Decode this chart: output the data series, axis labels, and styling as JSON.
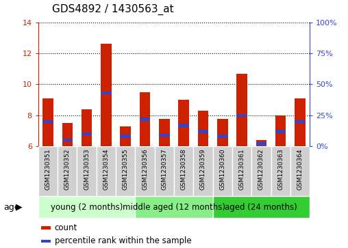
{
  "title": "GDS4892 / 1430563_at",
  "samples": [
    "GSM1230351",
    "GSM1230352",
    "GSM1230353",
    "GSM1230354",
    "GSM1230355",
    "GSM1230356",
    "GSM1230357",
    "GSM1230358",
    "GSM1230359",
    "GSM1230360",
    "GSM1230361",
    "GSM1230362",
    "GSM1230363",
    "GSM1230364"
  ],
  "count_values": [
    9.1,
    7.5,
    8.4,
    12.6,
    7.3,
    9.5,
    7.75,
    9.0,
    8.3,
    7.75,
    10.7,
    6.4,
    8.0,
    9.1
  ],
  "percentile_values": [
    20,
    5,
    10,
    43,
    8,
    22,
    9,
    17,
    12,
    8,
    25,
    2,
    12,
    20
  ],
  "ylim_left": [
    6,
    14
  ],
  "ylim_right": [
    0,
    100
  ],
  "yticks_left": [
    6,
    8,
    10,
    12,
    14
  ],
  "yticks_right": [
    0,
    25,
    50,
    75,
    100
  ],
  "ytick_labels_right": [
    "0%",
    "25%",
    "50%",
    "75%",
    "100%"
  ],
  "bar_color": "#cc2200",
  "percentile_color": "#3344cc",
  "bar_width": 0.55,
  "groups": [
    {
      "label": "young (2 months)",
      "start": 0,
      "end": 4,
      "color": "#ccffcc"
    },
    {
      "label": "middle aged (12 months)",
      "start": 5,
      "end": 8,
      "color": "#88ee88"
    },
    {
      "label": "aged (24 months)",
      "start": 9,
      "end": 13,
      "color": "#33cc33"
    }
  ],
  "age_label": "age",
  "legend_count_label": "count",
  "legend_percentile_label": "percentile rank within the sample",
  "bar_bg_color": "#d0d0d0",
  "bar_border_color": "#ffffff",
  "ylabel_left_color": "#cc2200",
  "ylabel_right_color": "#3344cc",
  "title_fontsize": 11,
  "tick_label_fontsize": 8,
  "sample_fontsize": 6.5,
  "group_fontsize": 8.5,
  "legend_fontsize": 8.5
}
